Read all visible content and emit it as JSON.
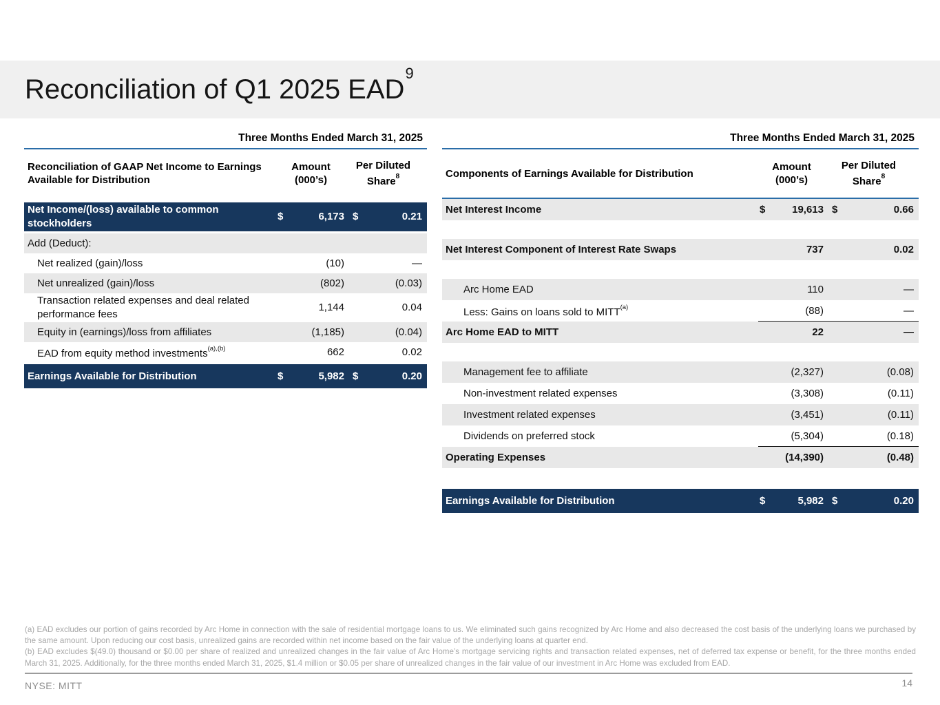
{
  "slide": {
    "title": "Reconciliation of Q1 2025 EAD",
    "title_superscript": "9",
    "footer_ticker": "NYSE: MITT",
    "page_number": "14"
  },
  "colors": {
    "navy": "#17375D",
    "rule_blue": "#2A6DA8",
    "row_gray": "#E8E8E8",
    "title_band_gray": "#F0F0F0"
  },
  "left_table": {
    "period_header": "Three Months Ended March 31, 2025",
    "header": {
      "label": "Reconciliation of GAAP Net Income to Earnings Available for Distribution",
      "amount_line1": "Amount",
      "amount_line2": "(000’s)",
      "share_line1": "Per Diluted",
      "share_line2": "Share",
      "share_sup": "8"
    },
    "rows": [
      {
        "label": "Net Income/(loss) available to common stockholders",
        "dollar1": "$",
        "amount": "6,173",
        "dollar2": "$",
        "share": "0.21",
        "style": "navy"
      },
      {
        "label": "Add (Deduct):",
        "style": "gray"
      },
      {
        "label": "Net realized (gain)/loss",
        "amount": "(10)",
        "share": "—",
        "style": "white",
        "indent": true
      },
      {
        "label": "Net unrealized (gain)/loss",
        "amount": "(802)",
        "share": "(0.03)",
        "style": "gray",
        "indent": true
      },
      {
        "label": "Transaction related expenses and deal related performance fees",
        "amount": "1,144",
        "share": "0.04",
        "style": "white",
        "indent": true
      },
      {
        "label": "Equity in (earnings)/loss from affiliates",
        "amount": "(1,185)",
        "share": "(0.04)",
        "style": "gray",
        "indent": true
      },
      {
        "label": "EAD from equity method investments",
        "label_sup": "(a),(b)",
        "amount": "662",
        "share": "0.02",
        "style": "white",
        "indent": true
      },
      {
        "label": "Earnings Available for Distribution",
        "dollar1": "$",
        "amount": "5,982",
        "dollar2": "$",
        "share": "0.20",
        "style": "navy"
      }
    ]
  },
  "right_table": {
    "period_header": "Three Months Ended March 31, 2025",
    "header": {
      "label": "Components of Earnings Available for Distribution",
      "amount_line1": "Amount",
      "amount_line2": "(000’s)",
      "share_line1": "Per Diluted",
      "share_line2": "Share",
      "share_sup": "8"
    },
    "rows": [
      {
        "label": "Net Interest Income",
        "bold": true,
        "dollar1": "$",
        "amount": "19,613",
        "dollar2": "$",
        "share": "0.66",
        "style": "gray"
      },
      {
        "type": "spacer"
      },
      {
        "label": "Net Interest Component of Interest Rate Swaps",
        "bold": true,
        "amount": "737",
        "share": "0.02",
        "style": "gray"
      },
      {
        "type": "spacer"
      },
      {
        "label": "Arc Home EAD",
        "amount": "110",
        "share": "—",
        "style": "gray",
        "indent": true
      },
      {
        "label": "Less: Gains on loans sold to MITT",
        "label_sup": "(a)",
        "amount": "(88)",
        "share": "—",
        "style": "white",
        "indent": true,
        "underline": true
      },
      {
        "label": "Arc Home EAD to MITT",
        "bold": true,
        "amount": "22",
        "share": "—",
        "style": "gray"
      },
      {
        "type": "spacer"
      },
      {
        "label": "Management fee to affiliate",
        "amount": "(2,327)",
        "share": "(0.08)",
        "style": "gray",
        "indent": true
      },
      {
        "label": "Non-investment related expenses",
        "amount": "(3,308)",
        "share": "(0.11)",
        "style": "white",
        "indent": true
      },
      {
        "label": "Investment related expenses",
        "amount": "(3,451)",
        "share": "(0.11)",
        "style": "gray",
        "indent": true
      },
      {
        "label": "Dividends on preferred stock",
        "amount": "(5,304)",
        "share": "(0.18)",
        "style": "white",
        "indent": true,
        "underline": true
      },
      {
        "label": "Operating Expenses",
        "bold": true,
        "amount": "(14,390)",
        "share": "(0.48)",
        "style": "gray"
      },
      {
        "type": "spacer"
      },
      {
        "label": "Earnings Available for Distribution",
        "dollar1": "$",
        "amount": "5,982",
        "dollar2": "$",
        "share": "0.20",
        "style": "navy"
      }
    ]
  },
  "footnotes": {
    "a": "(a) EAD excludes our portion of gains recorded by Arc Home in connection with the sale of residential mortgage loans to us. We eliminated such gains recognized by Arc Home and also decreased the cost basis of the underlying loans we purchased by the same amount. Upon reducing our cost basis, unrealized gains are recorded within net income based on the fair value of the underlying loans at quarter end.",
    "b": "(b) EAD excludes $(49.0) thousand or $0.00 per share of realized and unrealized changes in the fair value of Arc Home’s mortgage servicing rights and transaction related expenses, net of deferred tax expense or benefit, for the three months ended March 31, 2025. Additionally, for the three months ended March 31, 2025, $1.4 million or $0.05 per share of unrealized changes in the fair value of our investment in Arc Home was excluded from EAD."
  }
}
